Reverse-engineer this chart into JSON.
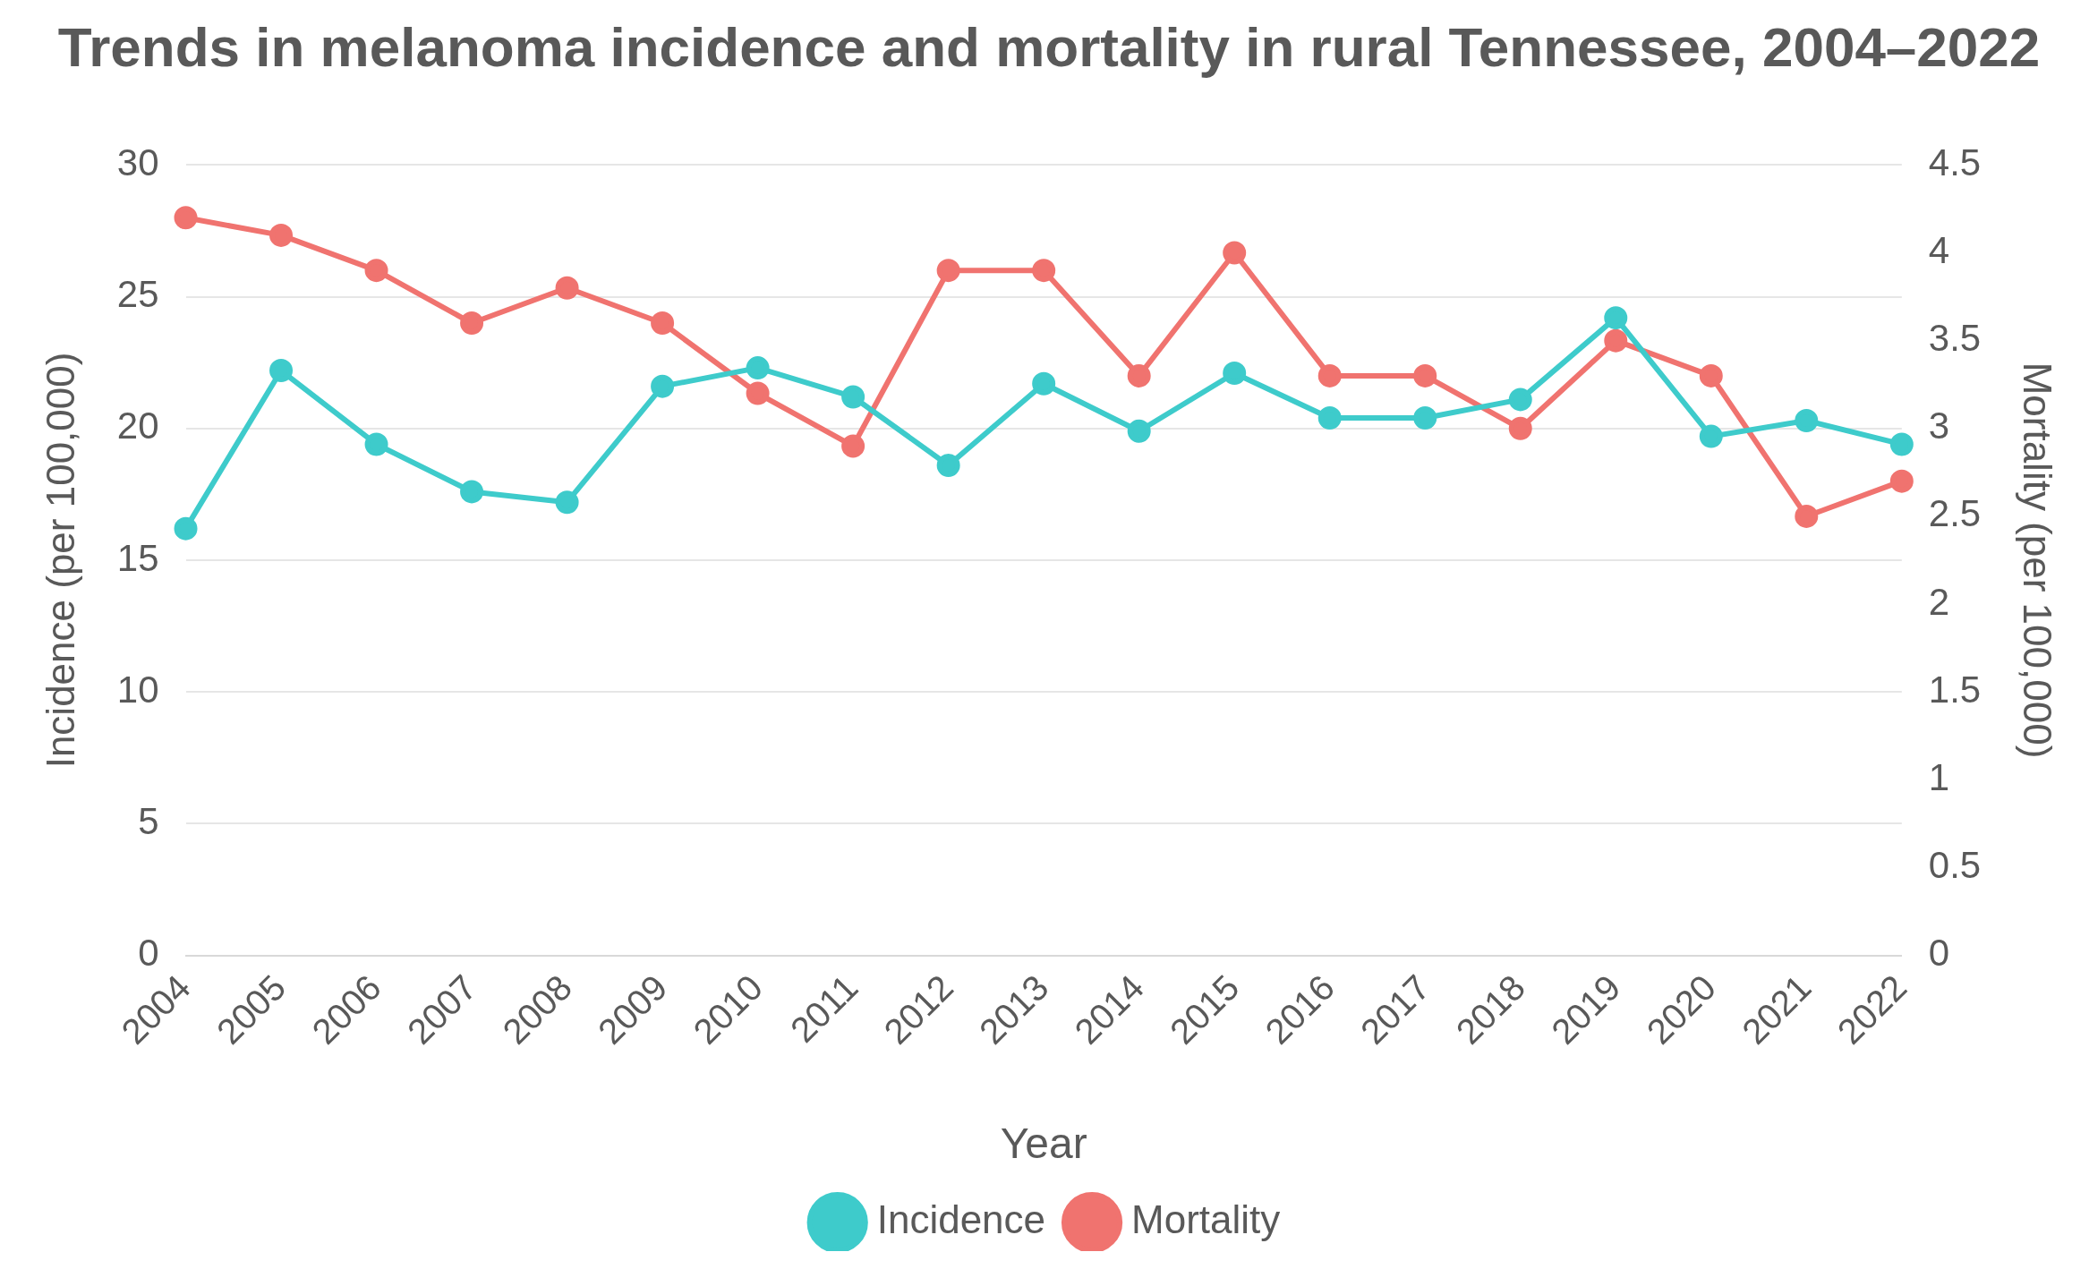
{
  "chart_data": {
    "type": "line",
    "title": "Trends in melanoma incidence and mortality in rural Tennessee, 2004–2022",
    "xlabel": "Year",
    "ylabel": "Incidence (per 100,000)",
    "y2label": "Mortality (per 100,000)",
    "categories": [
      "2004",
      "2005",
      "2006",
      "2007",
      "2008",
      "2009",
      "2010",
      "2011",
      "2012",
      "2013",
      "2014",
      "2015",
      "2016",
      "2017",
      "2018",
      "2019",
      "2020",
      "2021",
      "2022"
    ],
    "series": [
      {
        "name": "Incidence",
        "color": "#3ecbcb",
        "values": [
          16.2,
          22.2,
          19.4,
          17.6,
          17.2,
          21.6,
          22.3,
          21.2,
          18.6,
          21.7,
          19.9,
          22.1,
          20.4,
          20.4,
          21.1,
          24.2,
          19.7,
          20.3,
          19.4
        ]
      },
      {
        "name": "Mortality",
        "color": "#f0736f",
        "axis": "y2",
        "values": [
          4.2,
          4.1,
          3.9,
          3.6,
          3.8,
          3.6,
          3.2,
          2.9,
          3.9,
          3.9,
          3.3,
          4.0,
          3.3,
          3.3,
          3.0,
          3.5,
          3.3,
          2.5,
          2.7
        ]
      }
    ],
    "ylim": [
      0,
      30
    ],
    "yticks": [
      0,
      5,
      10,
      15,
      20,
      25,
      30
    ],
    "y2lim": [
      0,
      4.5
    ],
    "y2ticks": [
      0,
      0.5,
      1,
      1.5,
      2,
      2.5,
      3,
      3.5,
      4,
      4.5
    ],
    "grid": "y",
    "legend": "bottom",
    "marker": "circle",
    "line_style": "solid"
  }
}
